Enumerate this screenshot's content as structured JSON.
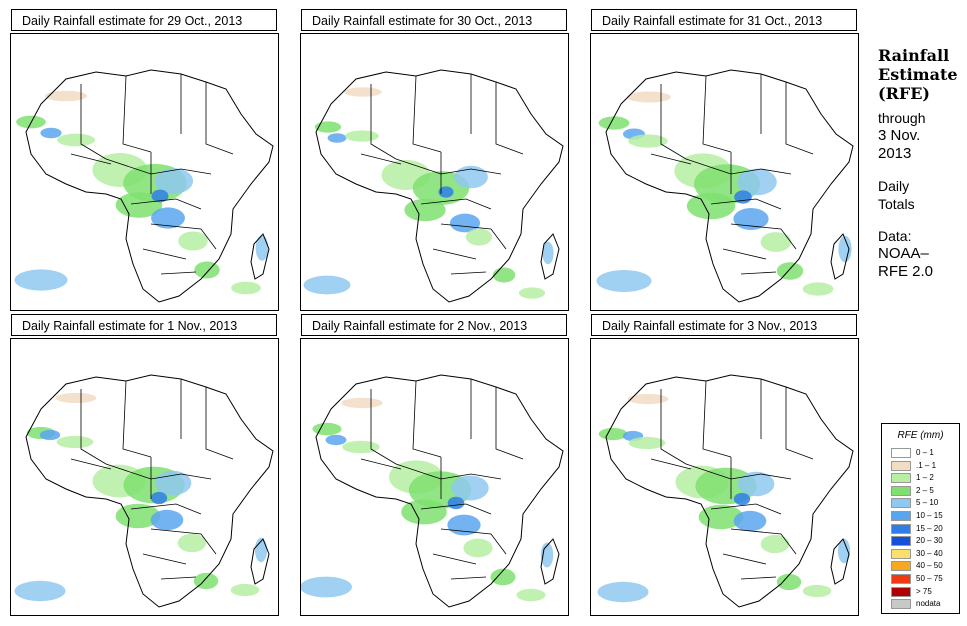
{
  "panels": [
    {
      "title": "Daily Rainfall estimate for  29 Oct., 2013",
      "intensity": 0.9
    },
    {
      "title": "Daily Rainfall estimate for  30 Oct., 2013",
      "intensity": 0.6
    },
    {
      "title": "Daily Rainfall estimate for  31 Oct., 2013",
      "intensity": 1.0
    },
    {
      "title": "Daily Rainfall estimate for  1 Nov., 2013",
      "intensity": 0.8
    },
    {
      "title": "Daily Rainfall estimate for  2 Nov., 2013",
      "intensity": 0.85
    },
    {
      "title": "Daily Rainfall estimate for  3 Nov., 2013",
      "intensity": 0.8
    }
  ],
  "sidebar": {
    "title_line1": "Rainfall",
    "title_line2": "Estimate",
    "title_line3": "(RFE)",
    "through": "through",
    "date_line1": "3 Nov.",
    "date_line2": "2013",
    "daily_line1": "Daily",
    "daily_line2": "Totals",
    "data_line1": "Data:",
    "data_line2": "NOAA–",
    "data_line3": "RFE 2.0"
  },
  "legend": {
    "title": "RFE (mm)",
    "items": [
      {
        "label": "0 – 1",
        "color": "#ffffff"
      },
      {
        "label": ".1 – 1",
        "color": "#f2dcc4"
      },
      {
        "label": "1 – 2",
        "color": "#b6efa2"
      },
      {
        "label": "2 – 5",
        "color": "#7fe070"
      },
      {
        "label": "5 – 10",
        "color": "#8fc8f0"
      },
      {
        "label": "10 – 15",
        "color": "#5aa6ee"
      },
      {
        "label": "15 – 20",
        "color": "#2f7ee8"
      },
      {
        "label": "20 – 30",
        "color": "#1450d8"
      },
      {
        "label": "30 – 40",
        "color": "#f8e06a"
      },
      {
        "label": "40 – 50",
        "color": "#f7a81e"
      },
      {
        "label": "50 – 75",
        "color": "#ee3a10"
      },
      {
        "label": "> 75",
        "color": "#b00000"
      },
      {
        "label": "nodata",
        "color": "#c8c8c8"
      }
    ]
  }
}
